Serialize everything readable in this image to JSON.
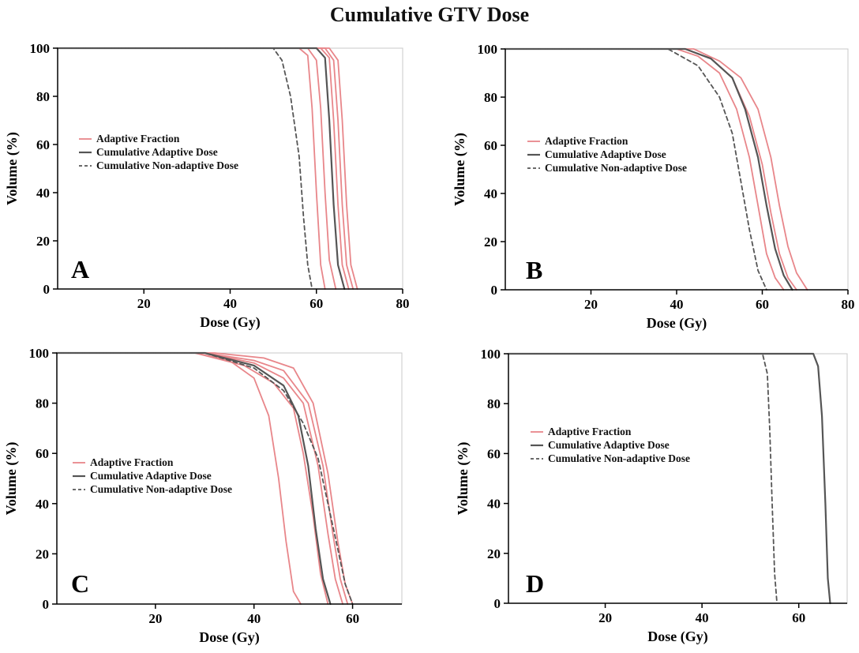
{
  "title": "Cumulative GTV Dose",
  "colors": {
    "adaptive_fraction": "#e8868a",
    "cumulative_adaptive": "#555555",
    "cumulative_non_adaptive": "#555555",
    "axis": "#000000",
    "frame": "#c8c8c8"
  },
  "chart_data": [
    {
      "panel": "A",
      "type": "line",
      "xlabel": "Dose (Gy)",
      "ylabel": "Volume (%)",
      "xlim": [
        0,
        80
      ],
      "ylim": [
        0,
        100
      ],
      "xticks": [
        20,
        40,
        60,
        80
      ],
      "yticks": [
        0,
        20,
        40,
        60,
        80,
        100
      ],
      "grid": false,
      "legend": [
        "Adaptive Fraction",
        "Cumulative Adaptive Dose",
        "Cumulative Non-adaptive Dose"
      ],
      "legend_position": "center-left",
      "series": [
        {
          "kind": "adaptive_fraction",
          "x": [
            0,
            56,
            58,
            59,
            60,
            61,
            62
          ],
          "y": [
            100,
            100,
            97,
            75,
            40,
            10,
            0
          ]
        },
        {
          "kind": "adaptive_fraction",
          "x": [
            0,
            58,
            60,
            61,
            62,
            63,
            64.5
          ],
          "y": [
            100,
            100,
            95,
            75,
            40,
            12,
            0
          ]
        },
        {
          "kind": "adaptive_fraction",
          "x": [
            0,
            61,
            63,
            64,
            65,
            66,
            67.5
          ],
          "y": [
            100,
            100,
            96,
            70,
            35,
            10,
            0
          ]
        },
        {
          "kind": "adaptive_fraction",
          "x": [
            0,
            62,
            64,
            65,
            66,
            67,
            68.5
          ],
          "y": [
            100,
            100,
            95,
            70,
            35,
            10,
            0
          ]
        },
        {
          "kind": "adaptive_fraction",
          "x": [
            0,
            63,
            65,
            66,
            67,
            68,
            69.5
          ],
          "y": [
            100,
            100,
            95,
            70,
            35,
            10,
            0
          ]
        },
        {
          "kind": "cumulative_adaptive",
          "x": [
            0,
            60,
            62,
            63,
            64,
            65,
            66.5
          ],
          "y": [
            100,
            100,
            96,
            70,
            35,
            10,
            0
          ]
        },
        {
          "kind": "cumulative_non_adaptive",
          "x": [
            0,
            50,
            52,
            54,
            56,
            57,
            58,
            59
          ],
          "y": [
            100,
            100,
            95,
            80,
            55,
            30,
            10,
            0
          ]
        }
      ]
    },
    {
      "panel": "B",
      "type": "line",
      "xlabel": "Dose (Gy)",
      "ylabel": "Volume (%)",
      "xlim": [
        0,
        80
      ],
      "ylim": [
        0,
        100
      ],
      "xticks": [
        20,
        40,
        60,
        80
      ],
      "yticks": [
        0,
        20,
        40,
        60,
        80,
        100
      ],
      "grid": false,
      "legend": [
        "Adaptive Fraction",
        "Cumulative Adaptive Dose",
        "Cumulative Non-adaptive Dose"
      ],
      "legend_position": "center-left",
      "series": [
        {
          "kind": "adaptive_fraction",
          "x": [
            0,
            40,
            45,
            50,
            54,
            57,
            59,
            61,
            63,
            65
          ],
          "y": [
            100,
            100,
            97,
            90,
            75,
            55,
            35,
            15,
            5,
            0
          ]
        },
        {
          "kind": "adaptive_fraction",
          "x": [
            0,
            42,
            48,
            53,
            57,
            60,
            62,
            64,
            66,
            68
          ],
          "y": [
            100,
            100,
            96,
            88,
            72,
            52,
            32,
            15,
            5,
            0
          ]
        },
        {
          "kind": "adaptive_fraction",
          "x": [
            0,
            44,
            50,
            55,
            59,
            62,
            64,
            66,
            68,
            70.5
          ],
          "y": [
            100,
            100,
            95,
            88,
            75,
            55,
            35,
            18,
            7,
            0
          ]
        },
        {
          "kind": "cumulative_adaptive",
          "x": [
            0,
            42,
            48,
            53,
            56,
            59,
            61,
            63,
            65,
            67
          ],
          "y": [
            100,
            100,
            96,
            88,
            75,
            55,
            35,
            17,
            6,
            0
          ]
        },
        {
          "kind": "cumulative_non_adaptive",
          "x": [
            0,
            38,
            45,
            50,
            53,
            55,
            57,
            59,
            61
          ],
          "y": [
            100,
            100,
            93,
            80,
            65,
            45,
            25,
            8,
            0
          ]
        }
      ]
    },
    {
      "panel": "C",
      "type": "line",
      "xlabel": "Dose (Gy)",
      "ylabel": "Volume (%)",
      "xlim": [
        0,
        70
      ],
      "ylim": [
        0,
        100
      ],
      "xticks": [
        20,
        40,
        60
      ],
      "yticks": [
        0,
        20,
        40,
        60,
        80,
        100
      ],
      "grid": false,
      "legend": [
        "Adaptive Fraction",
        "Cumulative Adaptive Dose",
        "Cumulative Non-adaptive Dose"
      ],
      "legend_position": "center-left",
      "series": [
        {
          "kind": "adaptive_fraction",
          "x": [
            0,
            28,
            35,
            40,
            43,
            45,
            46.5,
            48,
            49.5
          ],
          "y": [
            100,
            100,
            97,
            90,
            75,
            50,
            25,
            5,
            0
          ]
        },
        {
          "kind": "adaptive_fraction",
          "x": [
            0,
            28,
            38,
            44,
            48,
            50,
            52,
            53.5,
            55
          ],
          "y": [
            100,
            100,
            95,
            88,
            78,
            60,
            35,
            12,
            0
          ]
        },
        {
          "kind": "adaptive_fraction",
          "x": [
            0,
            30,
            40,
            46,
            50,
            53,
            55,
            56.5,
            58
          ],
          "y": [
            100,
            100,
            96,
            90,
            80,
            55,
            28,
            10,
            0
          ]
        },
        {
          "kind": "adaptive_fraction",
          "x": [
            0,
            30,
            40,
            46,
            51,
            54,
            56,
            57.5,
            59
          ],
          "y": [
            100,
            100,
            97,
            93,
            80,
            55,
            28,
            10,
            0
          ]
        },
        {
          "kind": "adaptive_fraction",
          "x": [
            0,
            32,
            42,
            48,
            52,
            55,
            57,
            58.5,
            60
          ],
          "y": [
            100,
            100,
            98,
            94,
            80,
            52,
            25,
            8,
            0
          ]
        },
        {
          "kind": "cumulative_adaptive",
          "x": [
            0,
            30,
            40,
            46,
            49,
            51,
            52.5,
            54,
            55.5
          ],
          "y": [
            100,
            100,
            95,
            87,
            75,
            55,
            30,
            10,
            0
          ]
        },
        {
          "kind": "cumulative_non_adaptive",
          "x": [
            0,
            30,
            40,
            46,
            50,
            53,
            55,
            57,
            58.5,
            60
          ],
          "y": [
            100,
            100,
            94,
            85,
            72,
            58,
            40,
            22,
            8,
            0
          ]
        }
      ]
    },
    {
      "panel": "D",
      "type": "line",
      "xlabel": "Dose (Gy)",
      "ylabel": "Volume (%)",
      "xlim": [
        0,
        70
      ],
      "ylim": [
        0,
        100
      ],
      "xticks": [
        20,
        40,
        60
      ],
      "yticks": [
        0,
        20,
        40,
        60,
        80,
        100
      ],
      "grid": false,
      "legend": [
        "Adaptive Fraction",
        "Cumulative Adaptive Dose",
        "Cumulative Non-adaptive Dose"
      ],
      "legend_position": "center-left",
      "series": [
        {
          "kind": "cumulative_adaptive",
          "x": [
            0,
            63,
            64,
            64.8,
            65.5,
            66,
            66.5
          ],
          "y": [
            100,
            100,
            95,
            75,
            40,
            10,
            0
          ]
        },
        {
          "kind": "cumulative_non_adaptive",
          "x": [
            0,
            52.5,
            53.5,
            54,
            54.5,
            55,
            55.5
          ],
          "y": [
            100,
            100,
            92,
            70,
            40,
            12,
            0
          ]
        }
      ]
    }
  ]
}
